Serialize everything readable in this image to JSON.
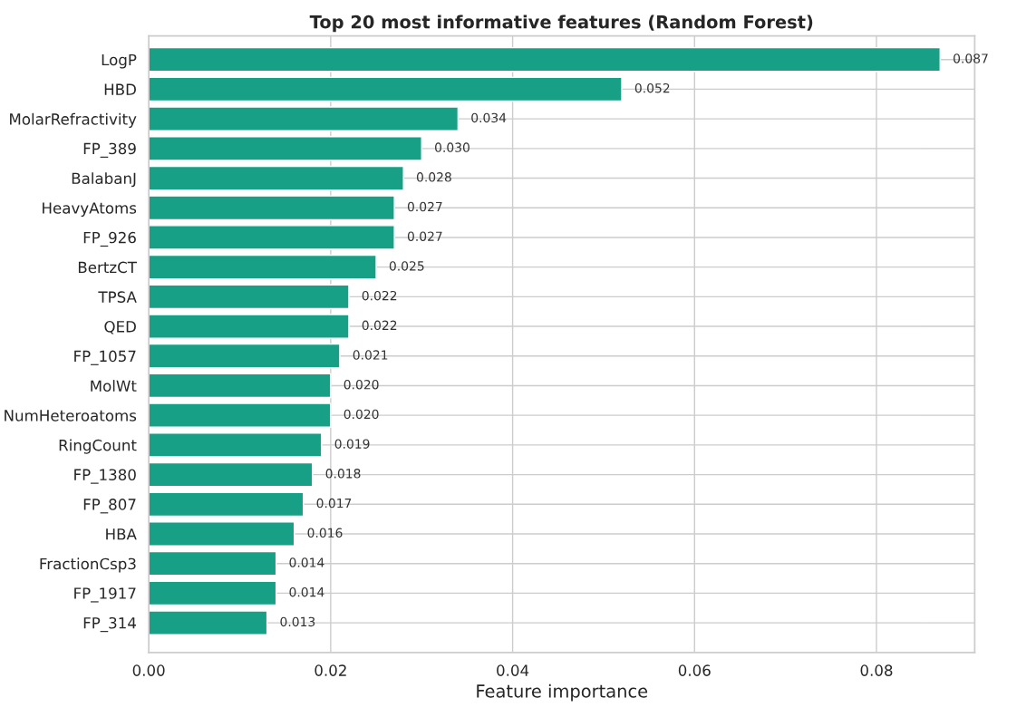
{
  "chart_data": {
    "type": "bar",
    "orientation": "horizontal",
    "title": "Top 20 most informative features (Random Forest)",
    "xlabel": "Feature importance",
    "categories": [
      "LogP",
      "HBD",
      "MolarRefractivity",
      "FP_389",
      "BalabanJ",
      "HeavyAtoms",
      "FP_926",
      "BertzCT",
      "TPSA",
      "QED",
      "FP_1057",
      "MolWt",
      "NumHeteroatoms",
      "RingCount",
      "FP_1380",
      "FP_807",
      "HBA",
      "FractionCsp3",
      "FP_1917",
      "FP_314"
    ],
    "values": [
      0.087,
      0.052,
      0.034,
      0.03,
      0.028,
      0.027,
      0.027,
      0.025,
      0.022,
      0.022,
      0.021,
      0.02,
      0.02,
      0.019,
      0.018,
      0.017,
      0.016,
      0.014,
      0.014,
      0.013
    ],
    "value_labels": [
      "0.087",
      "0.052",
      "0.034",
      "0.030",
      "0.028",
      "0.027",
      "0.027",
      "0.025",
      "0.022",
      "0.022",
      "0.021",
      "0.020",
      "0.020",
      "0.019",
      "0.018",
      "0.017",
      "0.016",
      "0.014",
      "0.014",
      "0.013"
    ],
    "color": "#17a085",
    "xlim": [
      0,
      0.0908
    ],
    "xticks": [
      {
        "value": 0,
        "label": "0.00"
      },
      {
        "value": 0.02,
        "label": "0.02"
      },
      {
        "value": 0.04,
        "label": "0.04"
      },
      {
        "value": 0.06,
        "label": "0.06"
      },
      {
        "value": 0.08,
        "label": "0.08"
      }
    ],
    "grid": true
  }
}
